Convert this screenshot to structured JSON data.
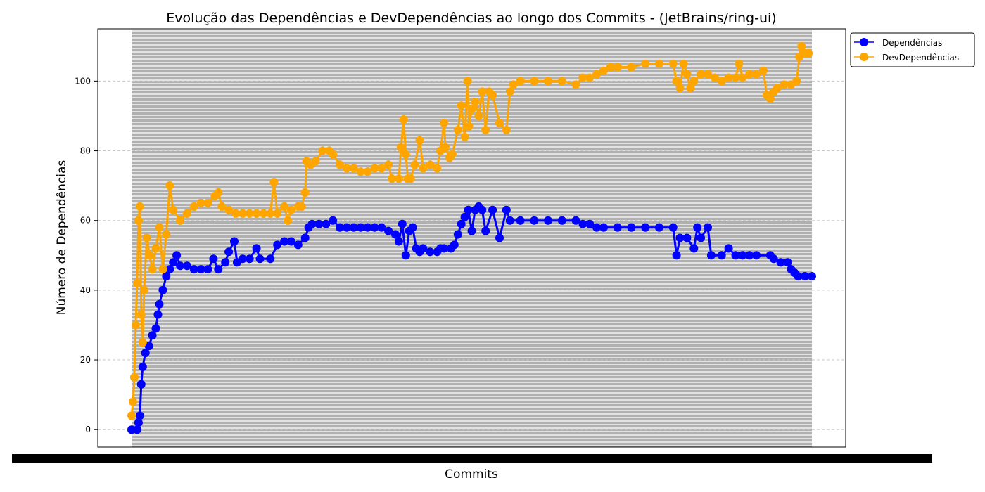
{
  "chart_data": {
    "type": "line",
    "title": "Evolução das Dependências e DevDependências ao longo dos Commits - (JetBrains/ring-ui)",
    "xlabel": "Commits",
    "ylabel": "Número de Dependências",
    "ylim": [
      -5,
      115
    ],
    "yticks": [
      0,
      20,
      40,
      60,
      80,
      100
    ],
    "grid": "y dashed",
    "legend_position": "outside-top-right",
    "x_tick_labels": "dense, illegible commit labels",
    "series": [
      {
        "name": "Dependências",
        "color": "#0000ff",
        "points": [
          [
            0,
            0
          ],
          [
            8,
            0
          ],
          [
            10,
            2
          ],
          [
            12,
            4
          ],
          [
            14,
            13
          ],
          [
            16,
            18
          ],
          [
            20,
            22
          ],
          [
            25,
            24
          ],
          [
            30,
            27
          ],
          [
            35,
            29
          ],
          [
            38,
            33
          ],
          [
            40,
            36
          ],
          [
            45,
            40
          ],
          [
            50,
            44
          ],
          [
            55,
            46
          ],
          [
            60,
            48
          ],
          [
            65,
            50
          ],
          [
            70,
            47
          ],
          [
            80,
            47
          ],
          [
            90,
            46
          ],
          [
            100,
            46
          ],
          [
            110,
            46
          ],
          [
            118,
            49
          ],
          [
            125,
            46
          ],
          [
            135,
            48
          ],
          [
            140,
            51
          ],
          [
            148,
            54
          ],
          [
            152,
            48
          ],
          [
            160,
            49
          ],
          [
            170,
            49
          ],
          [
            180,
            52
          ],
          [
            185,
            49
          ],
          [
            200,
            49
          ],
          [
            210,
            53
          ],
          [
            220,
            54
          ],
          [
            230,
            54
          ],
          [
            240,
            53
          ],
          [
            250,
            55
          ],
          [
            255,
            58
          ],
          [
            260,
            59
          ],
          [
            270,
            59
          ],
          [
            280,
            59
          ],
          [
            290,
            60
          ],
          [
            300,
            58
          ],
          [
            310,
            58
          ],
          [
            320,
            58
          ],
          [
            330,
            58
          ],
          [
            340,
            58
          ],
          [
            350,
            58
          ],
          [
            360,
            58
          ],
          [
            370,
            57
          ],
          [
            380,
            56
          ],
          [
            385,
            54
          ],
          [
            390,
            59
          ],
          [
            395,
            50
          ],
          [
            400,
            57
          ],
          [
            405,
            58
          ],
          [
            410,
            52
          ],
          [
            415,
            51
          ],
          [
            420,
            52
          ],
          [
            430,
            51
          ],
          [
            440,
            51
          ],
          [
            445,
            52
          ],
          [
            450,
            52
          ],
          [
            460,
            52
          ],
          [
            465,
            53
          ],
          [
            470,
            56
          ],
          [
            475,
            59
          ],
          [
            480,
            61
          ],
          [
            485,
            63
          ],
          [
            490,
            57
          ],
          [
            495,
            63
          ],
          [
            500,
            64
          ],
          [
            505,
            63
          ],
          [
            510,
            57
          ],
          [
            520,
            63
          ],
          [
            530,
            55
          ],
          [
            540,
            63
          ],
          [
            545,
            60
          ],
          [
            560,
            60
          ],
          [
            580,
            60
          ],
          [
            600,
            60
          ],
          [
            620,
            60
          ],
          [
            640,
            60
          ],
          [
            650,
            59
          ],
          [
            660,
            59
          ],
          [
            670,
            58
          ],
          [
            680,
            58
          ],
          [
            700,
            58
          ],
          [
            720,
            58
          ],
          [
            740,
            58
          ],
          [
            760,
            58
          ],
          [
            780,
            58
          ],
          [
            785,
            50
          ],
          [
            790,
            55
          ],
          [
            800,
            55
          ],
          [
            810,
            52
          ],
          [
            815,
            58
          ],
          [
            820,
            55
          ],
          [
            830,
            58
          ],
          [
            835,
            50
          ],
          [
            850,
            50
          ],
          [
            860,
            52
          ],
          [
            870,
            50
          ],
          [
            880,
            50
          ],
          [
            890,
            50
          ],
          [
            900,
            50
          ],
          [
            920,
            50
          ],
          [
            925,
            49
          ],
          [
            935,
            48
          ],
          [
            945,
            48
          ],
          [
            950,
            46
          ],
          [
            955,
            45
          ],
          [
            960,
            44
          ],
          [
            970,
            44
          ],
          [
            980,
            44
          ]
        ]
      },
      {
        "name": "DevDependências",
        "color": "#ffa500",
        "points": [
          [
            0,
            4
          ],
          [
            2,
            8
          ],
          [
            4,
            15
          ],
          [
            6,
            30
          ],
          [
            8,
            42
          ],
          [
            10,
            60
          ],
          [
            12,
            64
          ],
          [
            14,
            33
          ],
          [
            16,
            25
          ],
          [
            18,
            40
          ],
          [
            22,
            55
          ],
          [
            26,
            50
          ],
          [
            30,
            46
          ],
          [
            35,
            52
          ],
          [
            40,
            58
          ],
          [
            45,
            46
          ],
          [
            50,
            56
          ],
          [
            55,
            70
          ],
          [
            60,
            63
          ],
          [
            70,
            60
          ],
          [
            80,
            62
          ],
          [
            90,
            64
          ],
          [
            100,
            65
          ],
          [
            110,
            65
          ],
          [
            120,
            67
          ],
          [
            125,
            68
          ],
          [
            130,
            64
          ],
          [
            140,
            63
          ],
          [
            150,
            62
          ],
          [
            160,
            62
          ],
          [
            170,
            62
          ],
          [
            180,
            62
          ],
          [
            190,
            62
          ],
          [
            200,
            62
          ],
          [
            205,
            71
          ],
          [
            210,
            62
          ],
          [
            220,
            64
          ],
          [
            225,
            60
          ],
          [
            230,
            63
          ],
          [
            240,
            64
          ],
          [
            245,
            64
          ],
          [
            250,
            68
          ],
          [
            252,
            77
          ],
          [
            258,
            76
          ],
          [
            265,
            77
          ],
          [
            275,
            80
          ],
          [
            285,
            80
          ],
          [
            290,
            79
          ],
          [
            300,
            76
          ],
          [
            310,
            75
          ],
          [
            320,
            75
          ],
          [
            330,
            74
          ],
          [
            340,
            74
          ],
          [
            350,
            75
          ],
          [
            360,
            75
          ],
          [
            370,
            76
          ],
          [
            375,
            72
          ],
          [
            385,
            72
          ],
          [
            388,
            81
          ],
          [
            392,
            89
          ],
          [
            395,
            79
          ],
          [
            398,
            72
          ],
          [
            402,
            72
          ],
          [
            408,
            76
          ],
          [
            415,
            83
          ],
          [
            420,
            75
          ],
          [
            430,
            76
          ],
          [
            440,
            75
          ],
          [
            445,
            80
          ],
          [
            450,
            88
          ],
          [
            452,
            81
          ],
          [
            458,
            78
          ],
          [
            462,
            79
          ],
          [
            470,
            86
          ],
          [
            475,
            93
          ],
          [
            480,
            84
          ],
          [
            484,
            100
          ],
          [
            486,
            87
          ],
          [
            490,
            92
          ],
          [
            495,
            94
          ],
          [
            500,
            90
          ],
          [
            505,
            97
          ],
          [
            510,
            86
          ],
          [
            515,
            97
          ],
          [
            520,
            96
          ],
          [
            530,
            88
          ],
          [
            540,
            86
          ],
          [
            545,
            97
          ],
          [
            550,
            99
          ],
          [
            560,
            100
          ],
          [
            580,
            100
          ],
          [
            600,
            100
          ],
          [
            620,
            100
          ],
          [
            640,
            99
          ],
          [
            650,
            101
          ],
          [
            660,
            101
          ],
          [
            670,
            102
          ],
          [
            680,
            103
          ],
          [
            690,
            104
          ],
          [
            700,
            104
          ],
          [
            720,
            104
          ],
          [
            740,
            105
          ],
          [
            760,
            105
          ],
          [
            780,
            105
          ],
          [
            785,
            100
          ],
          [
            790,
            98
          ],
          [
            795,
            105
          ],
          [
            800,
            102
          ],
          [
            805,
            98
          ],
          [
            810,
            100
          ],
          [
            820,
            102
          ],
          [
            830,
            102
          ],
          [
            840,
            101
          ],
          [
            850,
            100
          ],
          [
            860,
            101
          ],
          [
            870,
            101
          ],
          [
            875,
            105
          ],
          [
            880,
            101
          ],
          [
            890,
            102
          ],
          [
            900,
            102
          ],
          [
            910,
            103
          ],
          [
            915,
            96
          ],
          [
            920,
            95
          ],
          [
            925,
            97
          ],
          [
            930,
            98
          ],
          [
            940,
            99
          ],
          [
            950,
            99
          ],
          [
            958,
            100
          ],
          [
            962,
            107
          ],
          [
            965,
            110
          ],
          [
            970,
            108
          ],
          [
            975,
            108
          ]
        ]
      }
    ]
  }
}
